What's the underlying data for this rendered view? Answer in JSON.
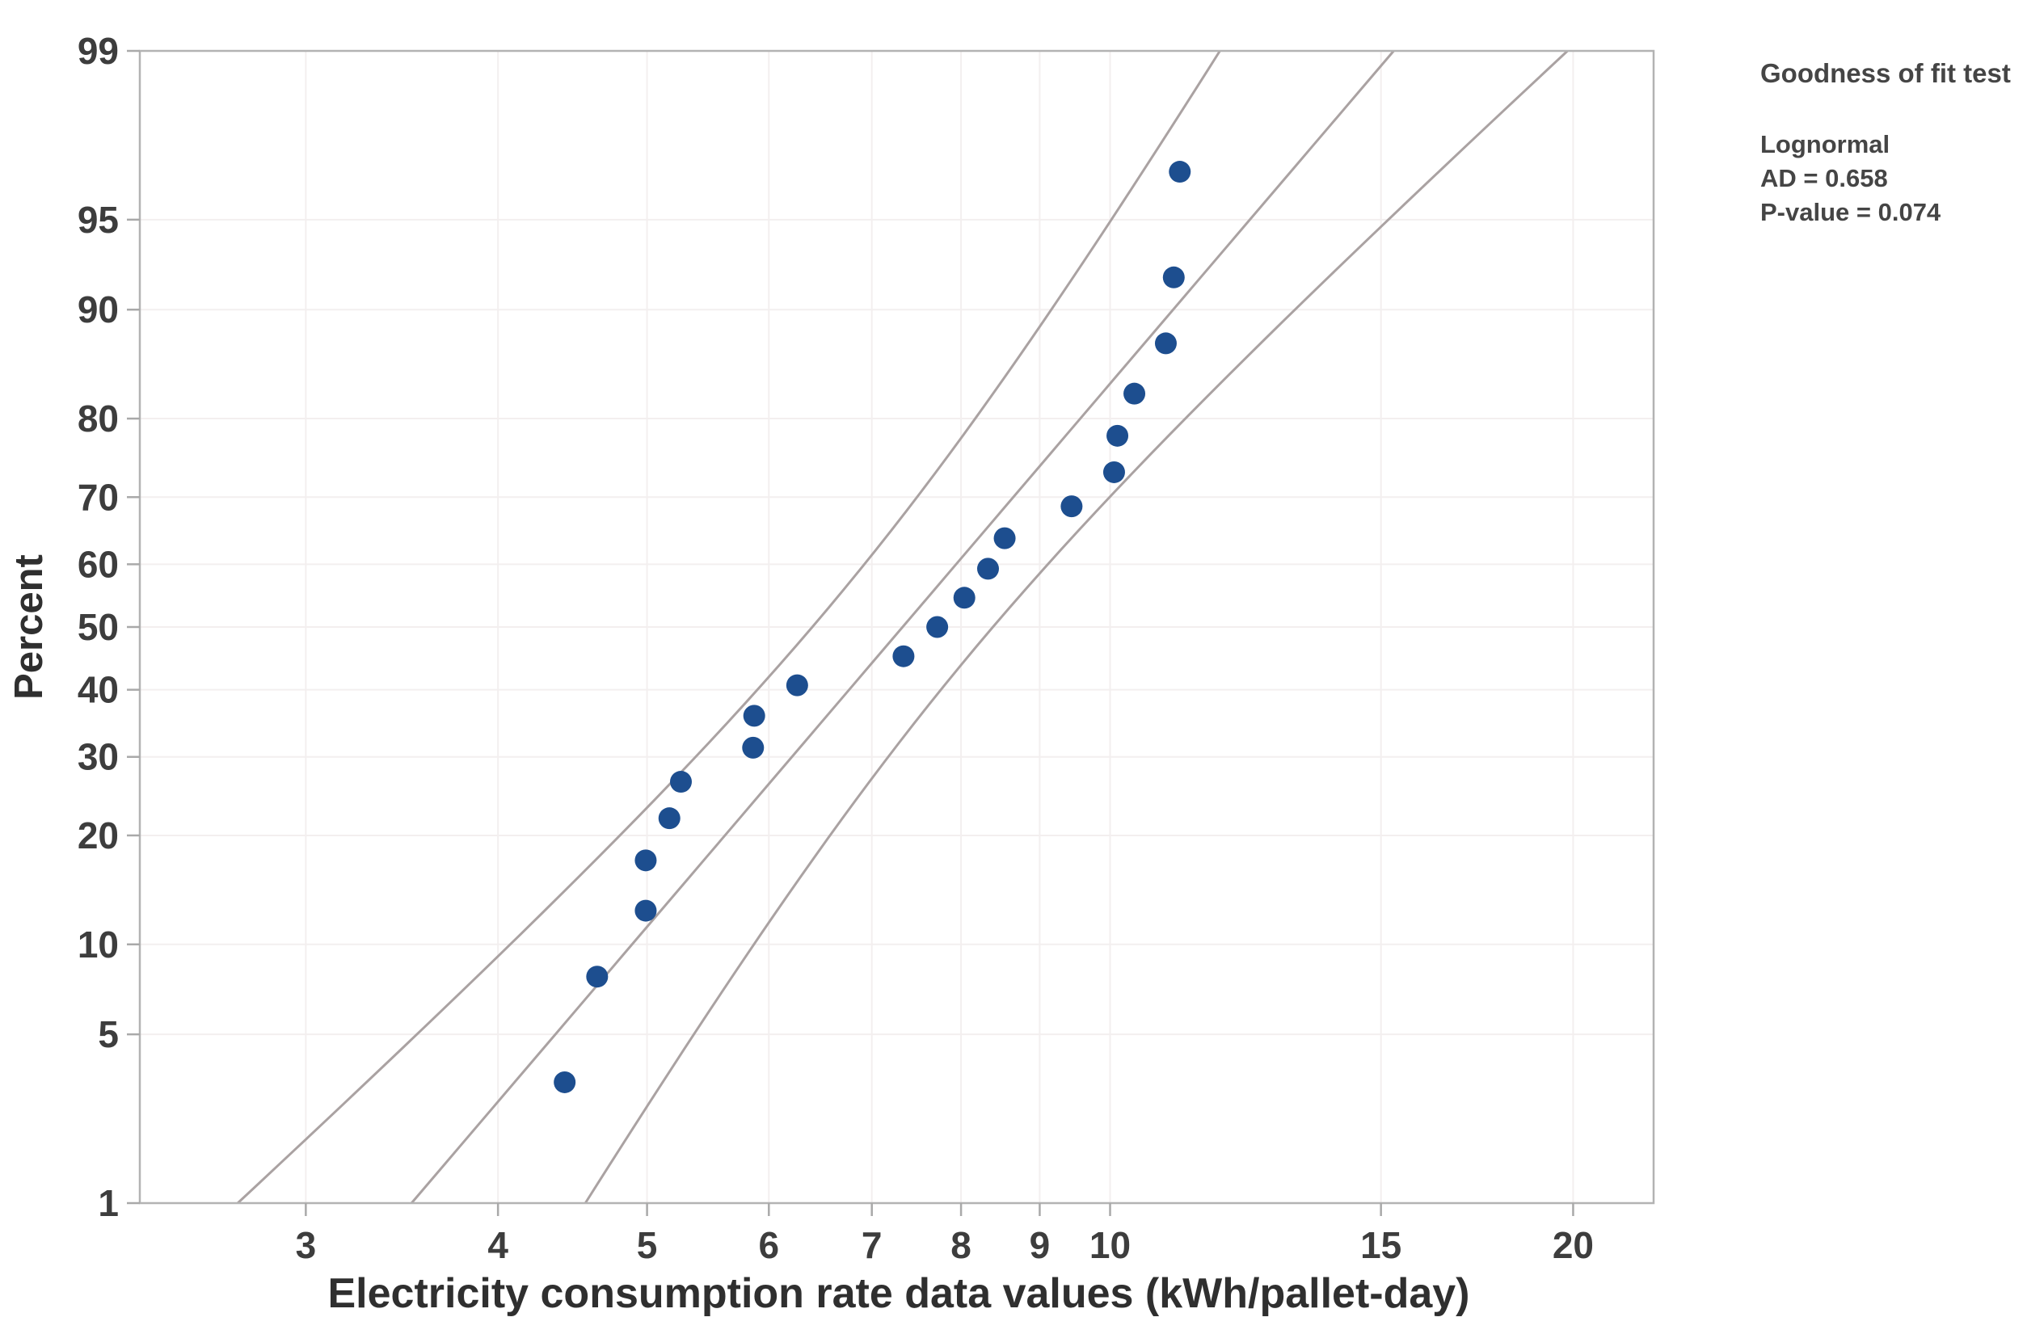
{
  "colors": {
    "point": "#1d4e8f",
    "band_line": "#aaa2a2",
    "grid": "#f3efef",
    "frame": "#b3b3b3",
    "tick": "#a9a9a9",
    "text": "#3d3d3d"
  },
  "chart_data": {
    "type": "scatter",
    "chart_kind": "lognormal-probability-plot",
    "title": "",
    "xlabel": "Electricity consumption rate data values (kWh/pallet-day)",
    "ylabel": "Percent",
    "x_scale": "log10",
    "y_scale": "normal-probability",
    "grid": true,
    "x_ticks": [
      3,
      4,
      5,
      6,
      7,
      8,
      9,
      10,
      15,
      20
    ],
    "y_ticks": [
      1,
      5,
      10,
      20,
      30,
      40,
      50,
      60,
      70,
      80,
      90,
      95,
      99
    ],
    "x_range": [
      2.34,
      22.56
    ],
    "y_range": [
      1,
      99
    ],
    "points": {
      "values": [
        4.42,
        4.64,
        4.99,
        4.99,
        5.17,
        5.26,
        5.86,
        5.87,
        6.26,
        7.34,
        7.72,
        8.04,
        8.33,
        8.54,
        9.44,
        10.06,
        10.11,
        10.37,
        10.87,
        11.0,
        11.1
      ],
      "percents": [
        3.3,
        7.9,
        12.6,
        17.3,
        22.0,
        26.6,
        31.3,
        36.0,
        40.7,
        45.3,
        50.0,
        54.7,
        59.3,
        64.0,
        68.7,
        73.4,
        78.0,
        82.7,
        87.4,
        92.1,
        96.7
      ]
    },
    "fit": {
      "distribution": "Lognormal",
      "log_mean": 1.992,
      "log_sd": 0.316,
      "n": 21,
      "confidence": 0.95
    },
    "annotation": {
      "title": "Goodness of fit test",
      "lines": [
        "Lognormal",
        "AD = 0.658",
        "P-value = 0.074"
      ]
    }
  }
}
